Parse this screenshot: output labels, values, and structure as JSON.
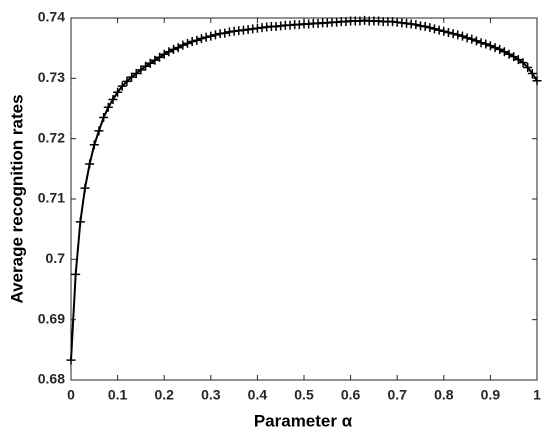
{
  "chart_data": {
    "type": "line",
    "xlabel": "Parameter α",
    "ylabel": "Average recognition rates",
    "x": [
      0,
      0.01,
      0.02,
      0.03,
      0.04,
      0.05,
      0.06,
      0.07,
      0.08,
      0.09,
      0.1,
      0.11,
      0.12,
      0.13,
      0.14,
      0.15,
      0.16,
      0.17,
      0.18,
      0.19,
      0.2,
      0.21,
      0.22,
      0.23,
      0.24,
      0.25,
      0.26,
      0.27,
      0.28,
      0.29,
      0.3,
      0.31,
      0.32,
      0.33,
      0.34,
      0.35,
      0.36,
      0.37,
      0.38,
      0.39,
      0.4,
      0.41,
      0.42,
      0.43,
      0.44,
      0.45,
      0.46,
      0.47,
      0.48,
      0.49,
      0.5,
      0.51,
      0.52,
      0.53,
      0.54,
      0.55,
      0.56,
      0.57,
      0.58,
      0.59,
      0.6,
      0.61,
      0.62,
      0.63,
      0.64,
      0.65,
      0.66,
      0.67,
      0.68,
      0.69,
      0.7,
      0.71,
      0.72,
      0.73,
      0.74,
      0.75,
      0.76,
      0.77,
      0.78,
      0.79,
      0.8,
      0.81,
      0.82,
      0.83,
      0.84,
      0.85,
      0.86,
      0.87,
      0.88,
      0.89,
      0.9,
      0.91,
      0.92,
      0.93,
      0.94,
      0.95,
      0.96,
      0.97,
      0.98,
      0.99,
      1
    ],
    "series": [
      {
        "color": "#000000",
        "marker": "+",
        "values": [
          0.6833,
          0.6975,
          0.7062,
          0.7118,
          0.7158,
          0.719,
          0.7213,
          0.7235,
          0.7252,
          0.7265,
          0.7277,
          0.7287,
          0.7295,
          0.7302,
          0.7308,
          0.7314,
          0.732,
          0.7325,
          0.733,
          0.7335,
          0.734,
          0.7344,
          0.7348,
          0.7351,
          0.7355,
          0.7358,
          0.7361,
          0.7363,
          0.7366,
          0.7368,
          0.737,
          0.7372,
          0.7374,
          0.7375,
          0.7377,
          0.7378,
          0.7379,
          0.738,
          0.7381,
          0.7382,
          0.7383,
          0.7384,
          0.7385,
          0.7386,
          0.7386,
          0.7387,
          0.7388,
          0.7388,
          0.7389,
          0.7389,
          0.739,
          0.739,
          0.7391,
          0.7391,
          0.7392,
          0.7392,
          0.7393,
          0.7393,
          0.7394,
          0.7394,
          0.7395,
          0.7395,
          0.7395,
          0.7396,
          0.7395,
          0.7395,
          0.7395,
          0.7394,
          0.7394,
          0.7394,
          0.7393,
          0.7392,
          0.7391,
          0.739,
          0.7389,
          0.7387,
          0.7386,
          0.7384,
          0.7382,
          0.738,
          0.7378,
          0.7376,
          0.7374,
          0.7372,
          0.737,
          0.7367,
          0.7365,
          0.7362,
          0.7359,
          0.7357,
          0.7354,
          0.7351,
          0.7348,
          0.7344,
          0.734,
          0.7336,
          0.7331,
          0.7326,
          0.7318,
          0.7308,
          0.7296
        ]
      }
    ],
    "xlim": [
      0,
      1
    ],
    "xticks": [
      0,
      0.1,
      0.2,
      0.3,
      0.4,
      0.5,
      0.6,
      0.7,
      0.8,
      0.9,
      1
    ],
    "ylim": [
      0.68,
      0.74
    ],
    "yticks": [
      0.68,
      0.69,
      0.7,
      0.71,
      0.72,
      0.73,
      0.74
    ],
    "grid": false
  }
}
